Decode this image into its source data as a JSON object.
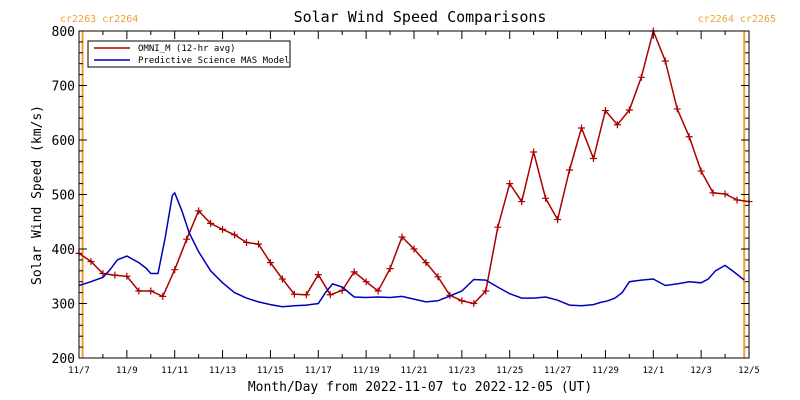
{
  "chart_data": {
    "type": "line",
    "title": "Solar Wind Speed Comparisons",
    "xlabel": "Month/Day from 2022-11-07 to 2022-12-05 (UT)",
    "ylabel": "Solar Wind Speed (km/s)",
    "xlim": [
      0,
      28
    ],
    "ylim": [
      200,
      800
    ],
    "grid": false,
    "legend_position": "top-left",
    "x_ticks": [
      {
        "x": 0,
        "label": "11/7"
      },
      {
        "x": 2,
        "label": "11/9"
      },
      {
        "x": 4,
        "label": "11/11"
      },
      {
        "x": 6,
        "label": "11/13"
      },
      {
        "x": 8,
        "label": "11/15"
      },
      {
        "x": 10,
        "label": "11/17"
      },
      {
        "x": 12,
        "label": "11/19"
      },
      {
        "x": 14,
        "label": "11/21"
      },
      {
        "x": 16,
        "label": "11/23"
      },
      {
        "x": 18,
        "label": "11/25"
      },
      {
        "x": 20,
        "label": "11/27"
      },
      {
        "x": 22,
        "label": "11/29"
      },
      {
        "x": 24,
        "label": "12/1"
      },
      {
        "x": 26,
        "label": "12/3"
      },
      {
        "x": 28,
        "label": "12/5"
      }
    ],
    "y_ticks": [
      200,
      300,
      400,
      500,
      600,
      700,
      800
    ],
    "carrington_markers": [
      {
        "x": 0.15,
        "label": "cr2263 cr2264",
        "color": "#f0a030",
        "align": "left"
      },
      {
        "x": 27.8,
        "label": "cr2264 cr2265",
        "color": "#f0a030",
        "align": "right"
      }
    ],
    "series": [
      {
        "name": "OMNI_M (12-hr avg)",
        "color": "#aa0000",
        "marker": "+",
        "x": [
          0.0,
          0.5,
          1.0,
          1.5,
          2.0,
          2.5,
          3.0,
          3.5,
          4.0,
          4.5,
          5.0,
          5.5,
          6.0,
          6.5,
          7.0,
          7.5,
          8.0,
          8.5,
          9.0,
          9.5,
          10.0,
          10.5,
          11.0,
          11.5,
          12.0,
          12.5,
          13.0,
          13.5,
          14.0,
          14.5,
          15.0,
          15.5,
          16.0,
          16.5,
          17.0,
          17.5,
          18.0,
          18.5,
          19.0,
          19.5,
          20.0,
          20.5,
          21.0,
          21.5,
          22.0,
          22.5,
          23.0,
          23.5,
          24.0,
          24.5,
          25.0,
          25.5,
          26.0,
          26.5,
          27.0,
          27.5,
          28.0
        ],
        "y": [
          392,
          377,
          355,
          352,
          350,
          323,
          323,
          313,
          362,
          418,
          470,
          447,
          436,
          426,
          412,
          409,
          375,
          345,
          317,
          316,
          353,
          316,
          324,
          358,
          340,
          323,
          364,
          422,
          400,
          375,
          349,
          315,
          305,
          300,
          323,
          440,
          520,
          487,
          578,
          493,
          454,
          545,
          622,
          566,
          654,
          628,
          655,
          715,
          800,
          745,
          657,
          606,
          543,
          503,
          501,
          490,
          487
        ]
      },
      {
        "name": "Predictive Science MAS Model",
        "color": "#0000bb",
        "marker": "none",
        "x": [
          0.0,
          0.5,
          1.0,
          1.3,
          1.6,
          2.0,
          2.5,
          2.8,
          3.0,
          3.3,
          3.6,
          3.9,
          4.0,
          4.3,
          4.6,
          5.0,
          5.5,
          6.0,
          6.5,
          7.0,
          7.5,
          8.0,
          8.5,
          9.0,
          9.5,
          10.0,
          10.3,
          10.6,
          11.0,
          11.5,
          12.0,
          12.5,
          13.0,
          13.5,
          14.0,
          14.5,
          15.0,
          15.5,
          16.0,
          16.5,
          17.0,
          17.5,
          18.0,
          18.5,
          19.0,
          19.5,
          20.0,
          20.5,
          21.0,
          21.5,
          21.8,
          22.1,
          22.4,
          22.7,
          23.0,
          23.5,
          24.0,
          24.5,
          25.0,
          25.5,
          26.0,
          26.3,
          26.6,
          27.0,
          27.4,
          27.8
        ],
        "y": [
          333,
          340,
          348,
          362,
          380,
          387,
          375,
          365,
          355,
          355,
          420,
          498,
          503,
          470,
          430,
          395,
          360,
          338,
          320,
          310,
          303,
          298,
          294,
          296,
          297,
          300,
          320,
          336,
          330,
          312,
          311,
          312,
          311,
          313,
          308,
          303,
          305,
          314,
          323,
          344,
          343,
          330,
          318,
          310,
          310,
          312,
          306,
          297,
          296,
          298,
          302,
          305,
          310,
          320,
          340,
          343,
          345,
          333,
          336,
          340,
          338,
          345,
          360,
          370,
          357,
          343
        ]
      }
    ]
  }
}
